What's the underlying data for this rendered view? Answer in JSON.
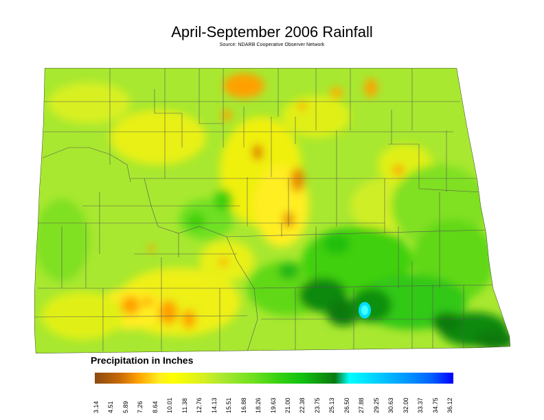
{
  "title": "April-September 2006 Rainfall",
  "source": "Source: NDARB Cooperative Observer Network",
  "legend": {
    "title": "Precipitation in Inches",
    "ticks": [
      "3.14",
      "4.51",
      "5.89",
      "7.26",
      "8.64",
      "10.01",
      "11.38",
      "12.76",
      "14.13",
      "15.51",
      "16.88",
      "18.26",
      "19.63",
      "21.00",
      "22.38",
      "23.75",
      "25.13",
      "26.50",
      "27.88",
      "29.25",
      "30.63",
      "32.00",
      "33.37",
      "34.75",
      "36.12"
    ]
  },
  "colors": {
    "dry": "#c86a06",
    "low": "#ffff00",
    "mid": "#70e020",
    "wet": "#0a7a10",
    "very_wet": "#00ffff",
    "max": "#0000ff"
  }
}
